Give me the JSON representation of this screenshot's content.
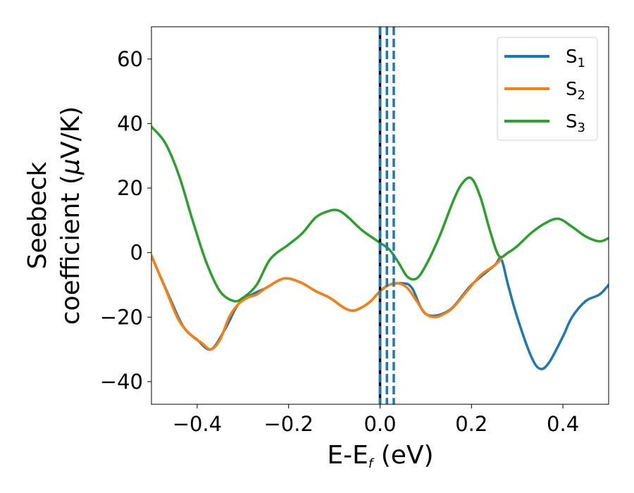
{
  "chart_data": {
    "type": "line",
    "xlabel": {
      "main": "E-E",
      "sub": "f",
      "unit": " (eV)"
    },
    "ylabel": {
      "line1": "Seebeck",
      "line2a": "coefficient  (",
      "mu": "μ",
      "line2b": "V/K)"
    },
    "xlim": [
      -0.5,
      0.5
    ],
    "ylim": [
      -47,
      70
    ],
    "xticks": [
      -0.4,
      -0.2,
      0.0,
      0.2,
      0.4
    ],
    "xtick_labels": [
      "−0.4",
      "−0.2",
      "0.0",
      "0.2",
      "0.4"
    ],
    "yticks": [
      -40,
      -20,
      0,
      20,
      40,
      60
    ],
    "ytick_labels": [
      "−40",
      "−20",
      "0",
      "20",
      "40",
      "60"
    ],
    "grid": false,
    "legend_position": "top-right",
    "series": [
      {
        "name": "S",
        "sub": "1",
        "color": "#1f77b4",
        "x": [
          -0.5,
          -0.46,
          -0.43,
          -0.4,
          -0.37,
          -0.34,
          -0.31,
          -0.28,
          -0.25,
          -0.22,
          -0.2,
          -0.17,
          -0.14,
          -0.11,
          -0.08,
          -0.06,
          -0.04,
          -0.02,
          0.0,
          0.02,
          0.05,
          0.07,
          0.1,
          0.15,
          0.2,
          0.25,
          0.265,
          0.28,
          0.3,
          0.33,
          0.35,
          0.37,
          0.4,
          0.42,
          0.45,
          0.48,
          0.5
        ],
        "y": [
          -1,
          -14,
          -23,
          -27,
          -30,
          -24,
          -16,
          -13,
          -11,
          -8.5,
          -8,
          -9.5,
          -12,
          -14,
          -17,
          -18,
          -17,
          -15,
          -12,
          -10,
          -9.5,
          -11,
          -19,
          -18,
          -10,
          -4,
          -2,
          -10,
          -20,
          -32,
          -36,
          -34,
          -26,
          -20,
          -15,
          -13,
          -10
        ]
      },
      {
        "name": "S",
        "sub": "2",
        "color": "#ff7f0e",
        "x": [
          -0.5,
          -0.47,
          -0.44,
          -0.41,
          -0.39,
          -0.37,
          -0.35,
          -0.33,
          -0.31,
          -0.29,
          -0.27,
          -0.25,
          -0.22,
          -0.2,
          -0.17,
          -0.14,
          -0.11,
          -0.08,
          -0.06,
          -0.04,
          -0.02,
          0.0,
          0.02,
          0.04,
          0.06,
          0.08,
          0.1,
          0.12,
          0.14,
          0.16,
          0.19,
          0.22,
          0.25,
          0.265
        ],
        "y": [
          -1,
          -11,
          -21,
          -26,
          -28,
          -30,
          -27,
          -20,
          -16,
          -14,
          -13,
          -11,
          -8.5,
          -8,
          -9.5,
          -12,
          -14,
          -17,
          -18,
          -17,
          -15,
          -12,
          -10,
          -9.5,
          -11,
          -15,
          -19,
          -20,
          -19,
          -17,
          -12,
          -7,
          -4,
          -2
        ]
      },
      {
        "name": "S",
        "sub": "3",
        "color": "#2ca02c",
        "x": [
          -0.5,
          -0.47,
          -0.44,
          -0.41,
          -0.38,
          -0.35,
          -0.32,
          -0.3,
          -0.27,
          -0.24,
          -0.2,
          -0.17,
          -0.14,
          -0.11,
          -0.09,
          -0.07,
          -0.04,
          -0.01,
          0.0,
          0.02,
          0.04,
          0.06,
          0.08,
          0.1,
          0.13,
          0.16,
          0.18,
          0.2,
          0.22,
          0.24,
          0.26,
          0.28,
          0.3,
          0.33,
          0.36,
          0.39,
          0.42,
          0.45,
          0.48,
          0.5
        ],
        "y": [
          39,
          34,
          24,
          10,
          -3,
          -12,
          -15,
          -14,
          -10,
          -2,
          2.5,
          6,
          11,
          13,
          13,
          11,
          7,
          4,
          3,
          1,
          -3,
          -7.5,
          -8,
          -4,
          5,
          16,
          21.5,
          23,
          17,
          7,
          -1,
          0,
          2,
          6,
          9,
          10.5,
          8,
          5,
          3.5,
          4.5
        ]
      }
    ],
    "vertical_lines": [
      {
        "x": 0.0,
        "color": "#000000",
        "style": "solid"
      },
      {
        "x": 0.0,
        "color": "#1f77b4",
        "style": "dashed"
      },
      {
        "x": 0.015,
        "color": "#1f77b4",
        "style": "dashed"
      },
      {
        "x": 0.03,
        "color": "#1f77b4",
        "style": "dashed"
      }
    ]
  }
}
